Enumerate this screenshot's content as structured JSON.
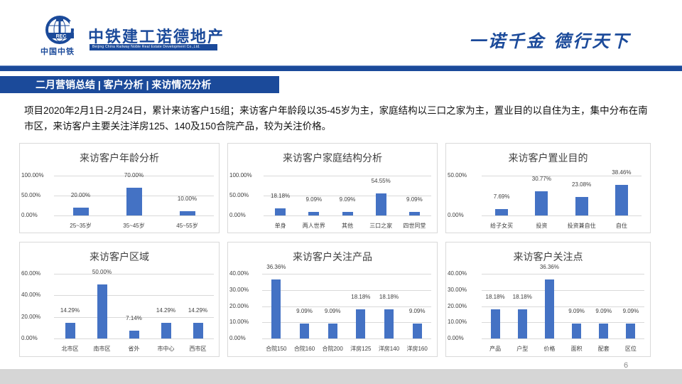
{
  "header": {
    "logo_small_text": "中国中铁",
    "brand_name": "中铁建工诺德地产",
    "brand_english": "Beijing China Railway Noble Real Estate Development Co.,Ltd.",
    "slogan": "一诺千金 德行天下"
  },
  "section_title": "二月营销总结 | 客户分析 | 来访情况分析",
  "summary": "项目2020年2月1日-2月24日，累计来访客户15组；来访客户年龄段以35-45岁为主，家庭结构以三口之家为主，置业目的以自住为主，集中分布在南市区，来访客户主要关注洋房125、140及150合院产品，较为关注价格。",
  "page_number": "6",
  "colors": {
    "brand_blue": "#1b4a9a",
    "bar_blue": "#4472c4",
    "footer_gray": "#d6d6d6"
  },
  "chart_data": [
    {
      "type": "bar",
      "title": "来访客户年龄分析",
      "categories": [
        "25~35岁",
        "35~45岁",
        "45~55岁"
      ],
      "values": [
        20.0,
        70.0,
        10.0
      ],
      "value_labels": [
        "20.00%",
        "70.00%",
        "10.00%"
      ],
      "yticks": [
        "0.00%",
        "50.00%",
        "100.00%"
      ],
      "ylim": [
        0,
        100
      ],
      "grid": true,
      "xlabel": "",
      "ylabel": ""
    },
    {
      "type": "bar",
      "title": "来访客户家庭结构分析",
      "categories": [
        "单身",
        "两人世界",
        "其他",
        "三口之家",
        "四世同堂"
      ],
      "values": [
        18.18,
        9.09,
        9.09,
        54.55,
        9.09
      ],
      "value_labels": [
        "18.18%",
        "9.09%",
        "9.09%",
        "54.55%",
        "9.09%"
      ],
      "yticks": [
        "0.00%",
        "50.00%",
        "100.00%"
      ],
      "ylim": [
        0,
        100
      ],
      "grid": true,
      "xlabel": "",
      "ylabel": ""
    },
    {
      "type": "bar",
      "title": "来访客户置业目的",
      "categories": [
        "给子女买",
        "投资",
        "投资兼自住",
        "自住"
      ],
      "values": [
        7.69,
        30.77,
        23.08,
        38.46
      ],
      "value_labels": [
        "7.69%",
        "30.77%",
        "23.08%",
        "38.46%"
      ],
      "yticks": [
        "0.00%",
        "50.00%"
      ],
      "ylim": [
        0,
        50
      ],
      "grid": true,
      "xlabel": "",
      "ylabel": ""
    },
    {
      "type": "bar",
      "title": "来访客户区域",
      "categories": [
        "北市区",
        "南市区",
        "省外",
        "市中心",
        "西市区"
      ],
      "values": [
        14.29,
        50.0,
        7.14,
        14.29,
        14.29
      ],
      "value_labels": [
        "14.29%",
        "50.00%",
        "7.14%",
        "14.29%",
        "14.29%"
      ],
      "yticks": [
        "0.00%",
        "20.00%",
        "40.00%",
        "60.00%"
      ],
      "ylim": [
        0,
        60
      ],
      "grid": true,
      "xlabel": "",
      "ylabel": ""
    },
    {
      "type": "bar",
      "title": "来访客户关注产品",
      "categories": [
        "合院150",
        "合院160",
        "合院200",
        "洋房125",
        "洋房140",
        "洋房160"
      ],
      "values": [
        36.36,
        9.09,
        9.09,
        18.18,
        18.18,
        9.09
      ],
      "value_labels": [
        "36.36%",
        "9.09%",
        "9.09%",
        "18.18%",
        "18.18%",
        "9.09%"
      ],
      "yticks": [
        "0.00%",
        "10.00%",
        "20.00%",
        "30.00%",
        "40.00%"
      ],
      "ylim": [
        0,
        40
      ],
      "grid": true,
      "xlabel": "",
      "ylabel": ""
    },
    {
      "type": "bar",
      "title": "来访客户关注点",
      "categories": [
        "产品",
        "户型",
        "价格",
        "面积",
        "配套",
        "区位"
      ],
      "values": [
        18.18,
        18.18,
        36.36,
        9.09,
        9.09,
        9.09
      ],
      "value_labels": [
        "18.18%",
        "18.18%",
        "36.36%",
        "9.09%",
        "9.09%",
        "9.09%"
      ],
      "yticks": [
        "0.00%",
        "10.00%",
        "20.00%",
        "30.00%",
        "40.00%"
      ],
      "ylim": [
        0,
        40
      ],
      "grid": true,
      "xlabel": "",
      "ylabel": ""
    }
  ]
}
